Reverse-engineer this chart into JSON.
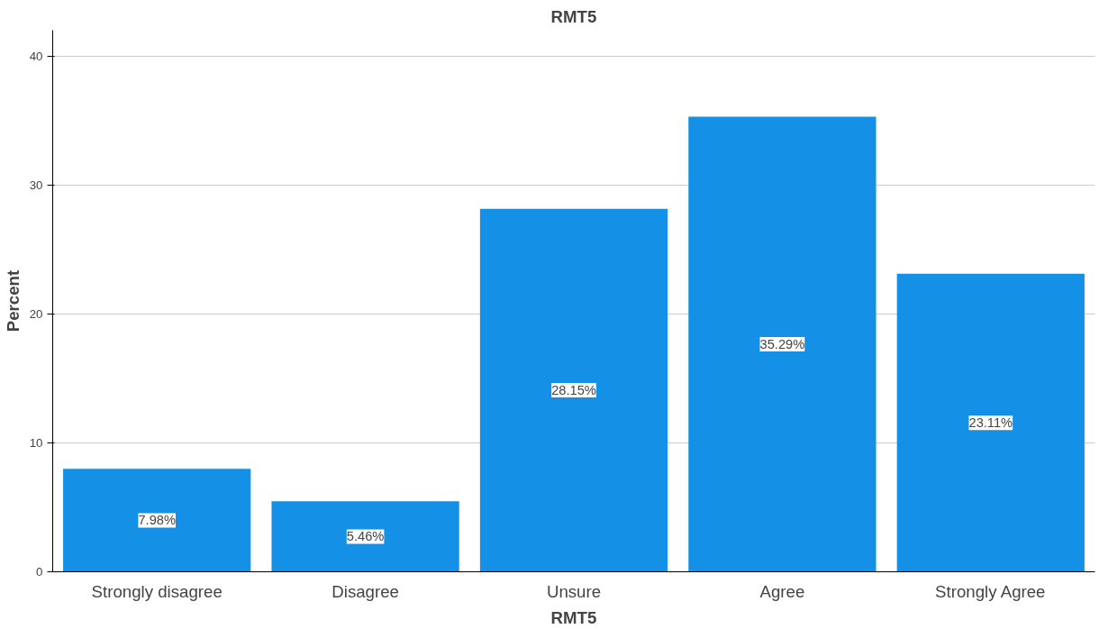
{
  "chart_data": {
    "type": "bar",
    "title": "RMT5",
    "xlabel": "RMT5",
    "ylabel": "Percent",
    "categories": [
      "Strongly disagree",
      "Disagree",
      "Unsure",
      "Agree",
      "Strongly Agree"
    ],
    "values": [
      7.98,
      5.46,
      28.15,
      35.29,
      23.11
    ],
    "value_labels": [
      "7.98%",
      "5.46%",
      "28.15%",
      "35.29%",
      "23.11%"
    ],
    "color": "#1491e6",
    "ylim": [
      0,
      42
    ],
    "yticks": [
      0,
      10,
      20,
      30,
      40
    ],
    "grid": "y"
  }
}
